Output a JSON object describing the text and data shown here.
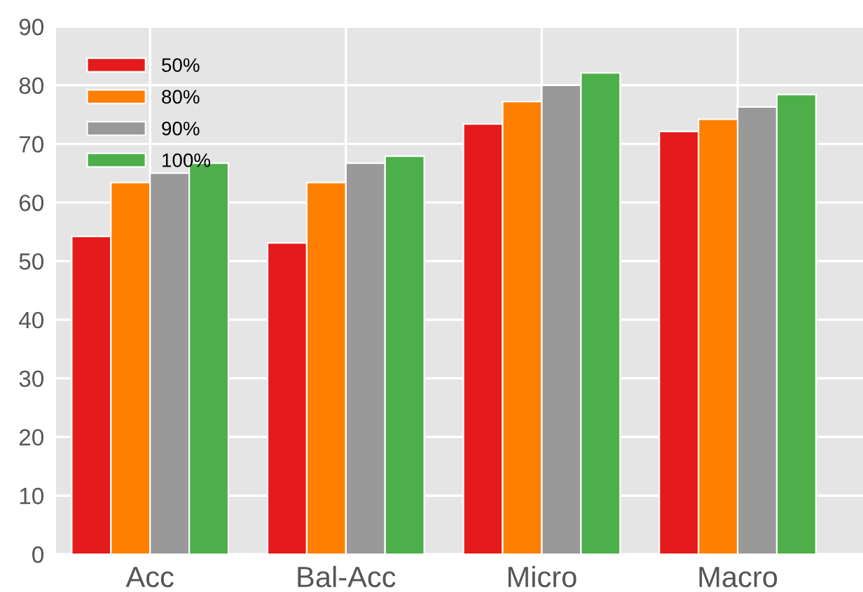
{
  "chart_data": {
    "type": "bar",
    "categories": [
      "Acc",
      "Bal-Acc",
      "Micro",
      "Macro"
    ],
    "series": [
      {
        "name": "50%",
        "color": "#e41a1c",
        "values": [
          54.2,
          53.1,
          73.4,
          72.1
        ]
      },
      {
        "name": "80%",
        "color": "#ff7f00",
        "values": [
          63.4,
          63.4,
          77.2,
          74.2
        ]
      },
      {
        "name": "90%",
        "color": "#999999",
        "values": [
          65.0,
          66.7,
          80.0,
          76.3
        ]
      },
      {
        "name": "100%",
        "color": "#4daf4a",
        "values": [
          66.7,
          67.9,
          82.1,
          78.4
        ]
      }
    ],
    "ylim": [
      0,
      90
    ],
    "yticks": [
      0,
      10,
      20,
      30,
      40,
      50,
      60,
      70,
      80,
      90
    ],
    "grid": true,
    "legend": "top left"
  }
}
